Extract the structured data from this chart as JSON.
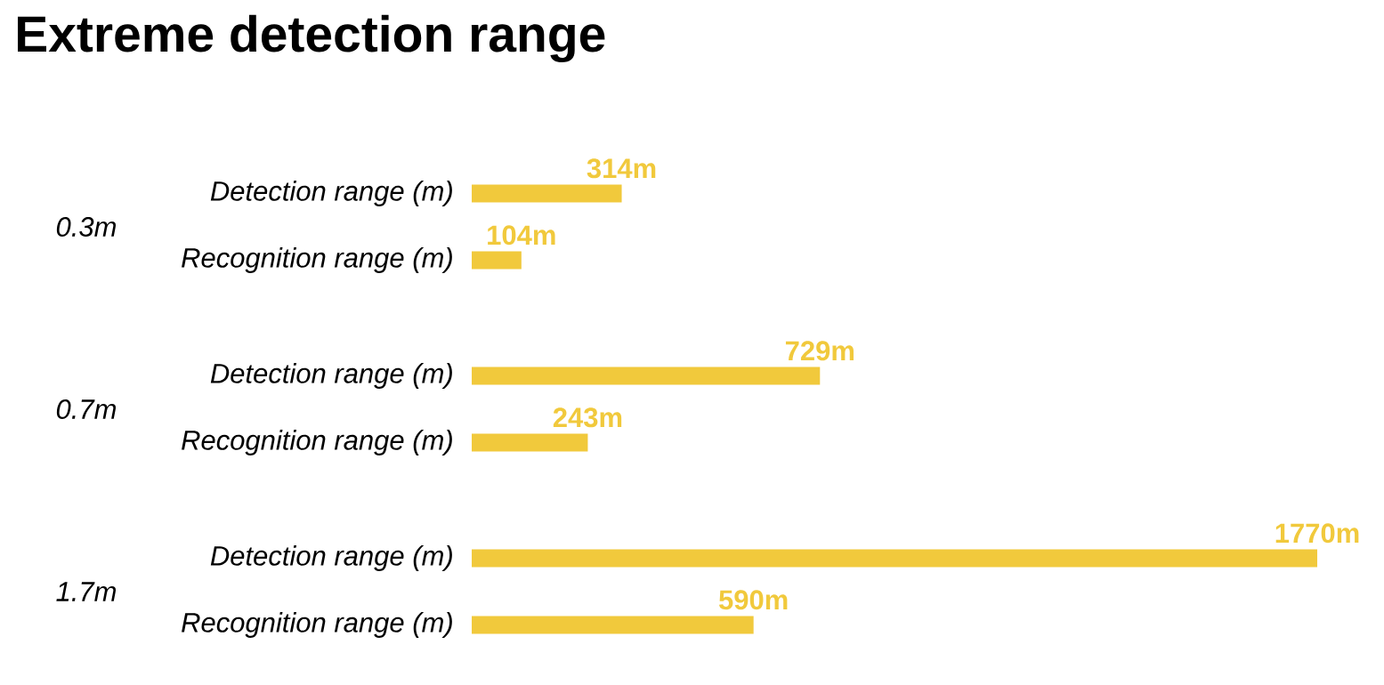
{
  "chart_data": {
    "type": "bar",
    "orientation": "horizontal",
    "title": "Extreme detection range",
    "categories": [
      "0.3m",
      "0.7m",
      "1.7m"
    ],
    "series": [
      {
        "name": "Detection range (m)",
        "color": "#f1c93c",
        "values": [
          314,
          729,
          1770
        ],
        "value_labels": [
          "314m",
          "729m",
          "1770m"
        ]
      },
      {
        "name": "Recognition range (m)",
        "color": "#f1c93c",
        "values": [
          104,
          243,
          590
        ],
        "value_labels": [
          "104m",
          "243m",
          "590m"
        ]
      }
    ],
    "xlim": [
      0,
      1770
    ],
    "tick_labels": "y"
  }
}
